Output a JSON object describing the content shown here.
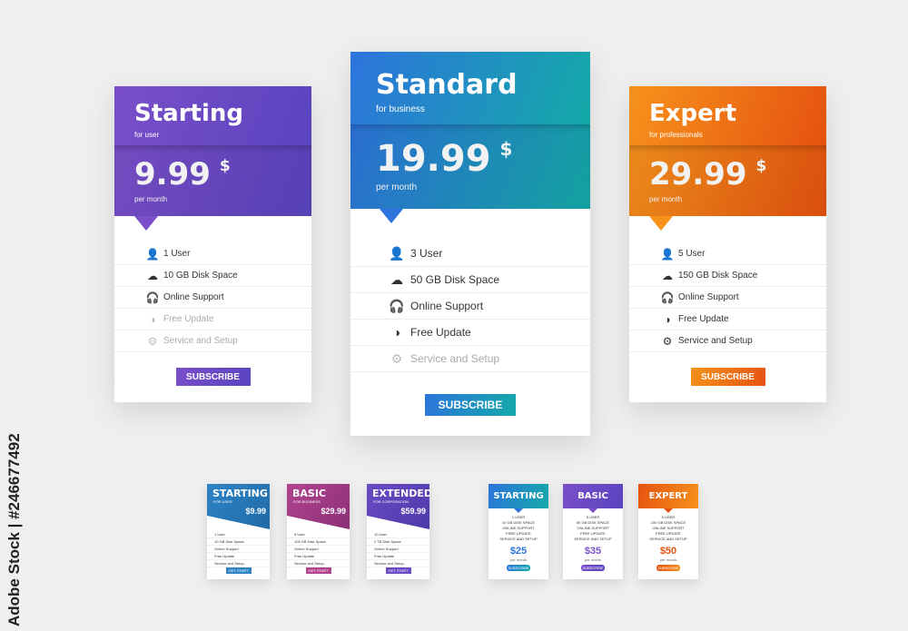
{
  "watermark": "Adobe Stock | #246677492",
  "plans": [
    {
      "name": "Starting",
      "tagline": "for user",
      "price": "9.99",
      "currency": "$",
      "period": "per month",
      "button": "SUBSCRIBE",
      "color_a": "#7a4fc9",
      "color_b": "#5a44bf",
      "features": [
        {
          "icon": "user-icon",
          "label": "1 User",
          "enabled": true
        },
        {
          "icon": "cloud-icon",
          "label": "10 GB Disk Space",
          "enabled": true
        },
        {
          "icon": "headphones-icon",
          "label": "Online Support",
          "enabled": true
        },
        {
          "icon": "update-icon",
          "label": "Free Update",
          "enabled": false
        },
        {
          "icon": "gear-icon",
          "label": "Service and Setup",
          "enabled": false
        }
      ]
    },
    {
      "name": "Standard",
      "tagline": "for business",
      "price": "19.99",
      "currency": "$",
      "period": "per month",
      "button": "SUBSCRIBE",
      "color_a": "#2d74dc",
      "color_b": "#14aaa8",
      "features": [
        {
          "icon": "user-icon",
          "label": "3 User",
          "enabled": true
        },
        {
          "icon": "cloud-icon",
          "label": "50 GB Disk Space",
          "enabled": true
        },
        {
          "icon": "headphones-icon",
          "label": "Online Support",
          "enabled": true
        },
        {
          "icon": "update-icon",
          "label": "Free Update",
          "enabled": true
        },
        {
          "icon": "gear-icon",
          "label": "Service and Setup",
          "enabled": false
        }
      ]
    },
    {
      "name": "Expert",
      "tagline": "for professionals",
      "price": "29.99",
      "currency": "$",
      "period": "per month",
      "button": "SUBSCRIBE",
      "color_a": "#f7921c",
      "color_b": "#e5520f",
      "features": [
        {
          "icon": "user-icon",
          "label": "5 User",
          "enabled": true
        },
        {
          "icon": "cloud-icon",
          "label": "150 GB Disk Space",
          "enabled": true
        },
        {
          "icon": "headphones-icon",
          "label": "Online Support",
          "enabled": true
        },
        {
          "icon": "update-icon",
          "label": "Free Update",
          "enabled": true
        },
        {
          "icon": "gear-icon",
          "label": "Service and Setup",
          "enabled": true
        }
      ]
    }
  ],
  "mini_plans_a": [
    {
      "name": "STARTING",
      "tagline": "FOR USER",
      "price": "$9.99",
      "button": "GET START",
      "color_a": "#2f84c6",
      "color_b": "#1f6aa6",
      "features": [
        "1 User",
        "10 GB Disk Space",
        "Online Support",
        "Free Update",
        "Service and Setup"
      ]
    },
    {
      "name": "BASIC",
      "tagline": "FOR BUSINESS",
      "price": "$29.99",
      "button": "GET START",
      "color_a": "#b2448f",
      "color_b": "#8a2f78",
      "features": [
        "5 User",
        "100 GB Disk Space",
        "Online Support",
        "Free Update",
        "Service and Setup"
      ]
    },
    {
      "name": "EXTENDED",
      "tagline": "FOR CORPORATION",
      "price": "$59.99",
      "button": "GET START",
      "color_a": "#6a4bc4",
      "color_b": "#4d3aaa",
      "features": [
        "10 User",
        "2 TB Disk Space",
        "Online Support",
        "Free Update",
        "Service and Setup"
      ]
    }
  ],
  "mini_plans_b": [
    {
      "name": "STARTING",
      "price": "$25",
      "period": "per month",
      "button": "SUBSCRIBE",
      "color_a": "#2d74dc",
      "color_b": "#14aaa8",
      "features": [
        "1 USER",
        "10 GB DISK SPACE",
        "ONLINE SUPPORT",
        "FREE UPDATE",
        "SERVICE AND SETUP"
      ]
    },
    {
      "name": "BASIC",
      "price": "$35",
      "period": "per month",
      "button": "SUBSCRIBE",
      "color_a": "#7a4fc9",
      "color_b": "#5a44bf",
      "features": [
        "5 USER",
        "50 GB DISK SPACE",
        "ONLINE SUPPORT",
        "FREE UPDATE",
        "SERVICE AND SETUP"
      ]
    },
    {
      "name": "EXPERT",
      "price": "$50",
      "period": "per month",
      "button": "SUBSCRIBE",
      "color_a": "#e5520f",
      "color_b": "#f7921c",
      "features": [
        "5 USER",
        "150 GB DISK SPACE",
        "ONLINE SUPPORT",
        "FREE UPDATE",
        "SERVICE AND SETUP"
      ]
    }
  ]
}
